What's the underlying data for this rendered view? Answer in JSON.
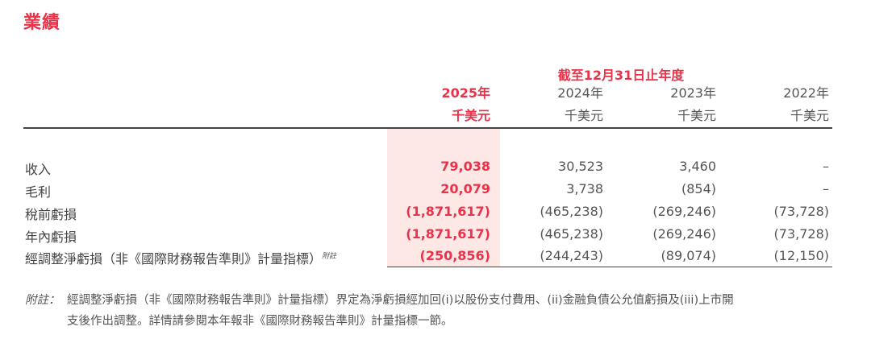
{
  "title": "業績",
  "period_header": "截至12月31日止年度",
  "columns": [
    {
      "year": "2025年",
      "unit": "千美元"
    },
    {
      "year": "2024年",
      "unit": "千美元"
    },
    {
      "year": "2023年",
      "unit": "千美元"
    },
    {
      "year": "2022年",
      "unit": "千美元"
    }
  ],
  "rows": [
    {
      "label": "收入",
      "note_ref": "",
      "values": [
        "79,038",
        "30,523",
        "3,460",
        "–"
      ]
    },
    {
      "label": "毛利",
      "note_ref": "",
      "values": [
        "20,079",
        "3,738",
        "(854)",
        "–"
      ]
    },
    {
      "label": "稅前虧損",
      "note_ref": "",
      "values": [
        "(1,871,617)",
        "(465,238)",
        "(269,246)",
        "(73,728)"
      ]
    },
    {
      "label": "年內虧損",
      "note_ref": "",
      "values": [
        "(1,871,617)",
        "(465,238)",
        "(269,246)",
        "(73,728)"
      ]
    },
    {
      "label": "經調整淨虧損（非《國際財務報告準則》計量指標）",
      "note_ref": "附註",
      "values": [
        "(250,856)",
        "(244,243)",
        "(89,074)",
        "(12,150)"
      ]
    }
  ],
  "footnote": {
    "label": "附註：",
    "line1": "經調整淨虧損（非《國際財務報告準則》計量指標）界定為淨虧損經加回(i)以股份支付費用、(ii)金融負債公允值虧損及(iii)上市開",
    "line2": "支後作出調整。詳情請參閱本年報非《國際財務報告準則》計量指標一節。"
  }
}
